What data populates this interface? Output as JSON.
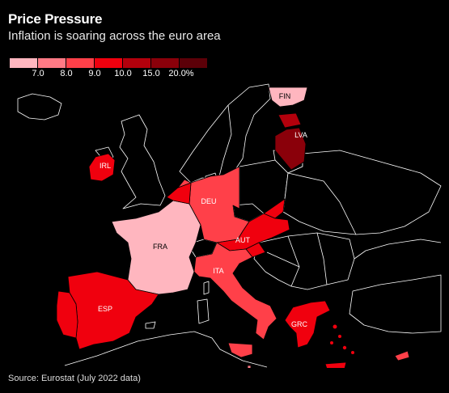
{
  "header": {
    "title": "Price Pressure",
    "subtitle": "Inflation is soaring across the euro area"
  },
  "legend": {
    "bins": [
      {
        "color": "#ffb6bf"
      },
      {
        "color": "#ff7a85"
      },
      {
        "color": "#ff4049"
      },
      {
        "color": "#f0000e"
      },
      {
        "color": "#b3000c"
      },
      {
        "color": "#8a000a"
      },
      {
        "color": "#5c0008"
      }
    ],
    "labels": [
      "7.0",
      "8.0",
      "9.0",
      "10.0",
      "15.0",
      "20.0%"
    ]
  },
  "map": {
    "countries": [
      {
        "code": "FIN",
        "label": "FIN",
        "color": "#ffb6bf"
      },
      {
        "code": "LVA",
        "label": "LVA",
        "color": "#8a000a"
      },
      {
        "code": "IRL",
        "label": "IRL",
        "color": "#f0000e"
      },
      {
        "code": "DEU",
        "label": "DEU",
        "color": "#ff4049"
      },
      {
        "code": "FRA",
        "label": "FRA",
        "color": "#ffb6bf"
      },
      {
        "code": "AUT",
        "label": "AUT",
        "color": "#f0000e"
      },
      {
        "code": "ITA",
        "label": "ITA",
        "color": "#ff4049"
      },
      {
        "code": "ESP",
        "label": "ESP",
        "color": "#f0000e"
      },
      {
        "code": "GRC",
        "label": "GRC",
        "color": "#f0000e"
      }
    ],
    "unlabeled_colors": {
      "benelux": "#f0000e",
      "netherlands": "#ff4049",
      "portugal": "#f0000e",
      "estonia": "#b3000c",
      "slovakia": "#f0000e",
      "slovenia": "#f0000e",
      "cyprus": "#ff4049",
      "malta": "#ff7a85"
    }
  },
  "footer": {
    "source": "Source: Eurostat (July 2022 data)"
  }
}
